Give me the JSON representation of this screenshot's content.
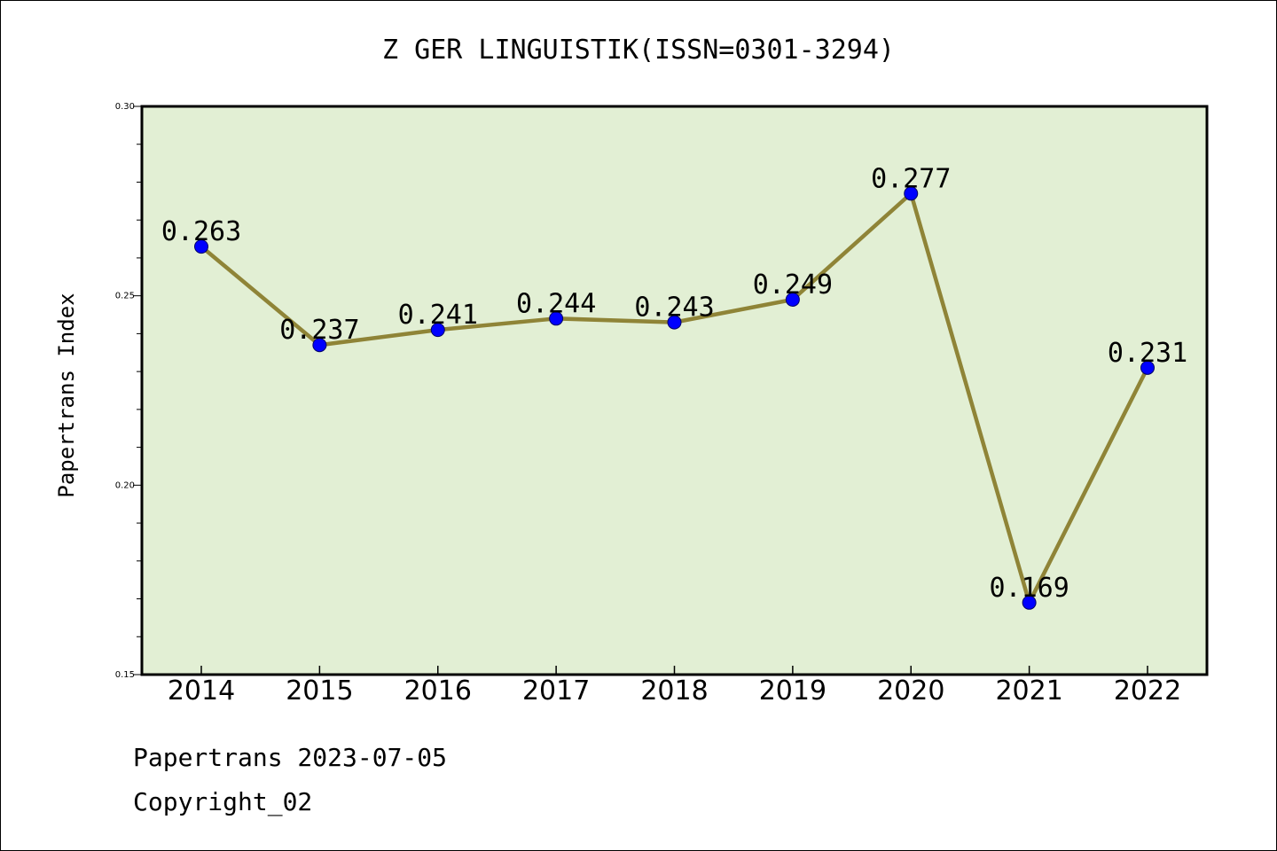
{
  "chart_data": {
    "type": "line",
    "title": "Z GER LINGUISTIK(ISSN=0301-3294)",
    "xlabel": "",
    "ylabel": "Papertrans Index",
    "categories": [
      "2014",
      "2015",
      "2016",
      "2017",
      "2018",
      "2019",
      "2020",
      "2021",
      "2022"
    ],
    "series": [
      {
        "values": [
          0.263,
          0.237,
          0.241,
          0.244,
          0.243,
          0.249,
          0.277,
          0.169,
          0.231
        ]
      }
    ],
    "data_labels": [
      "0.263",
      "0.237",
      "0.241",
      "0.244",
      "0.243",
      "0.249",
      "0.277",
      "0.169",
      "0.231"
    ],
    "ylim": [
      0.15,
      0.3
    ],
    "yticks": [
      "0.15",
      "0.20",
      "0.25",
      "0.30"
    ],
    "grid": false,
    "legend": "none",
    "colors": {
      "plot_background": "#e2efd4",
      "line": "#8f8437",
      "marker": "#0000ff",
      "axes": "#000000"
    }
  },
  "footer": {
    "line1": "Papertrans 2023-07-05",
    "line2": "Copyright_02"
  }
}
